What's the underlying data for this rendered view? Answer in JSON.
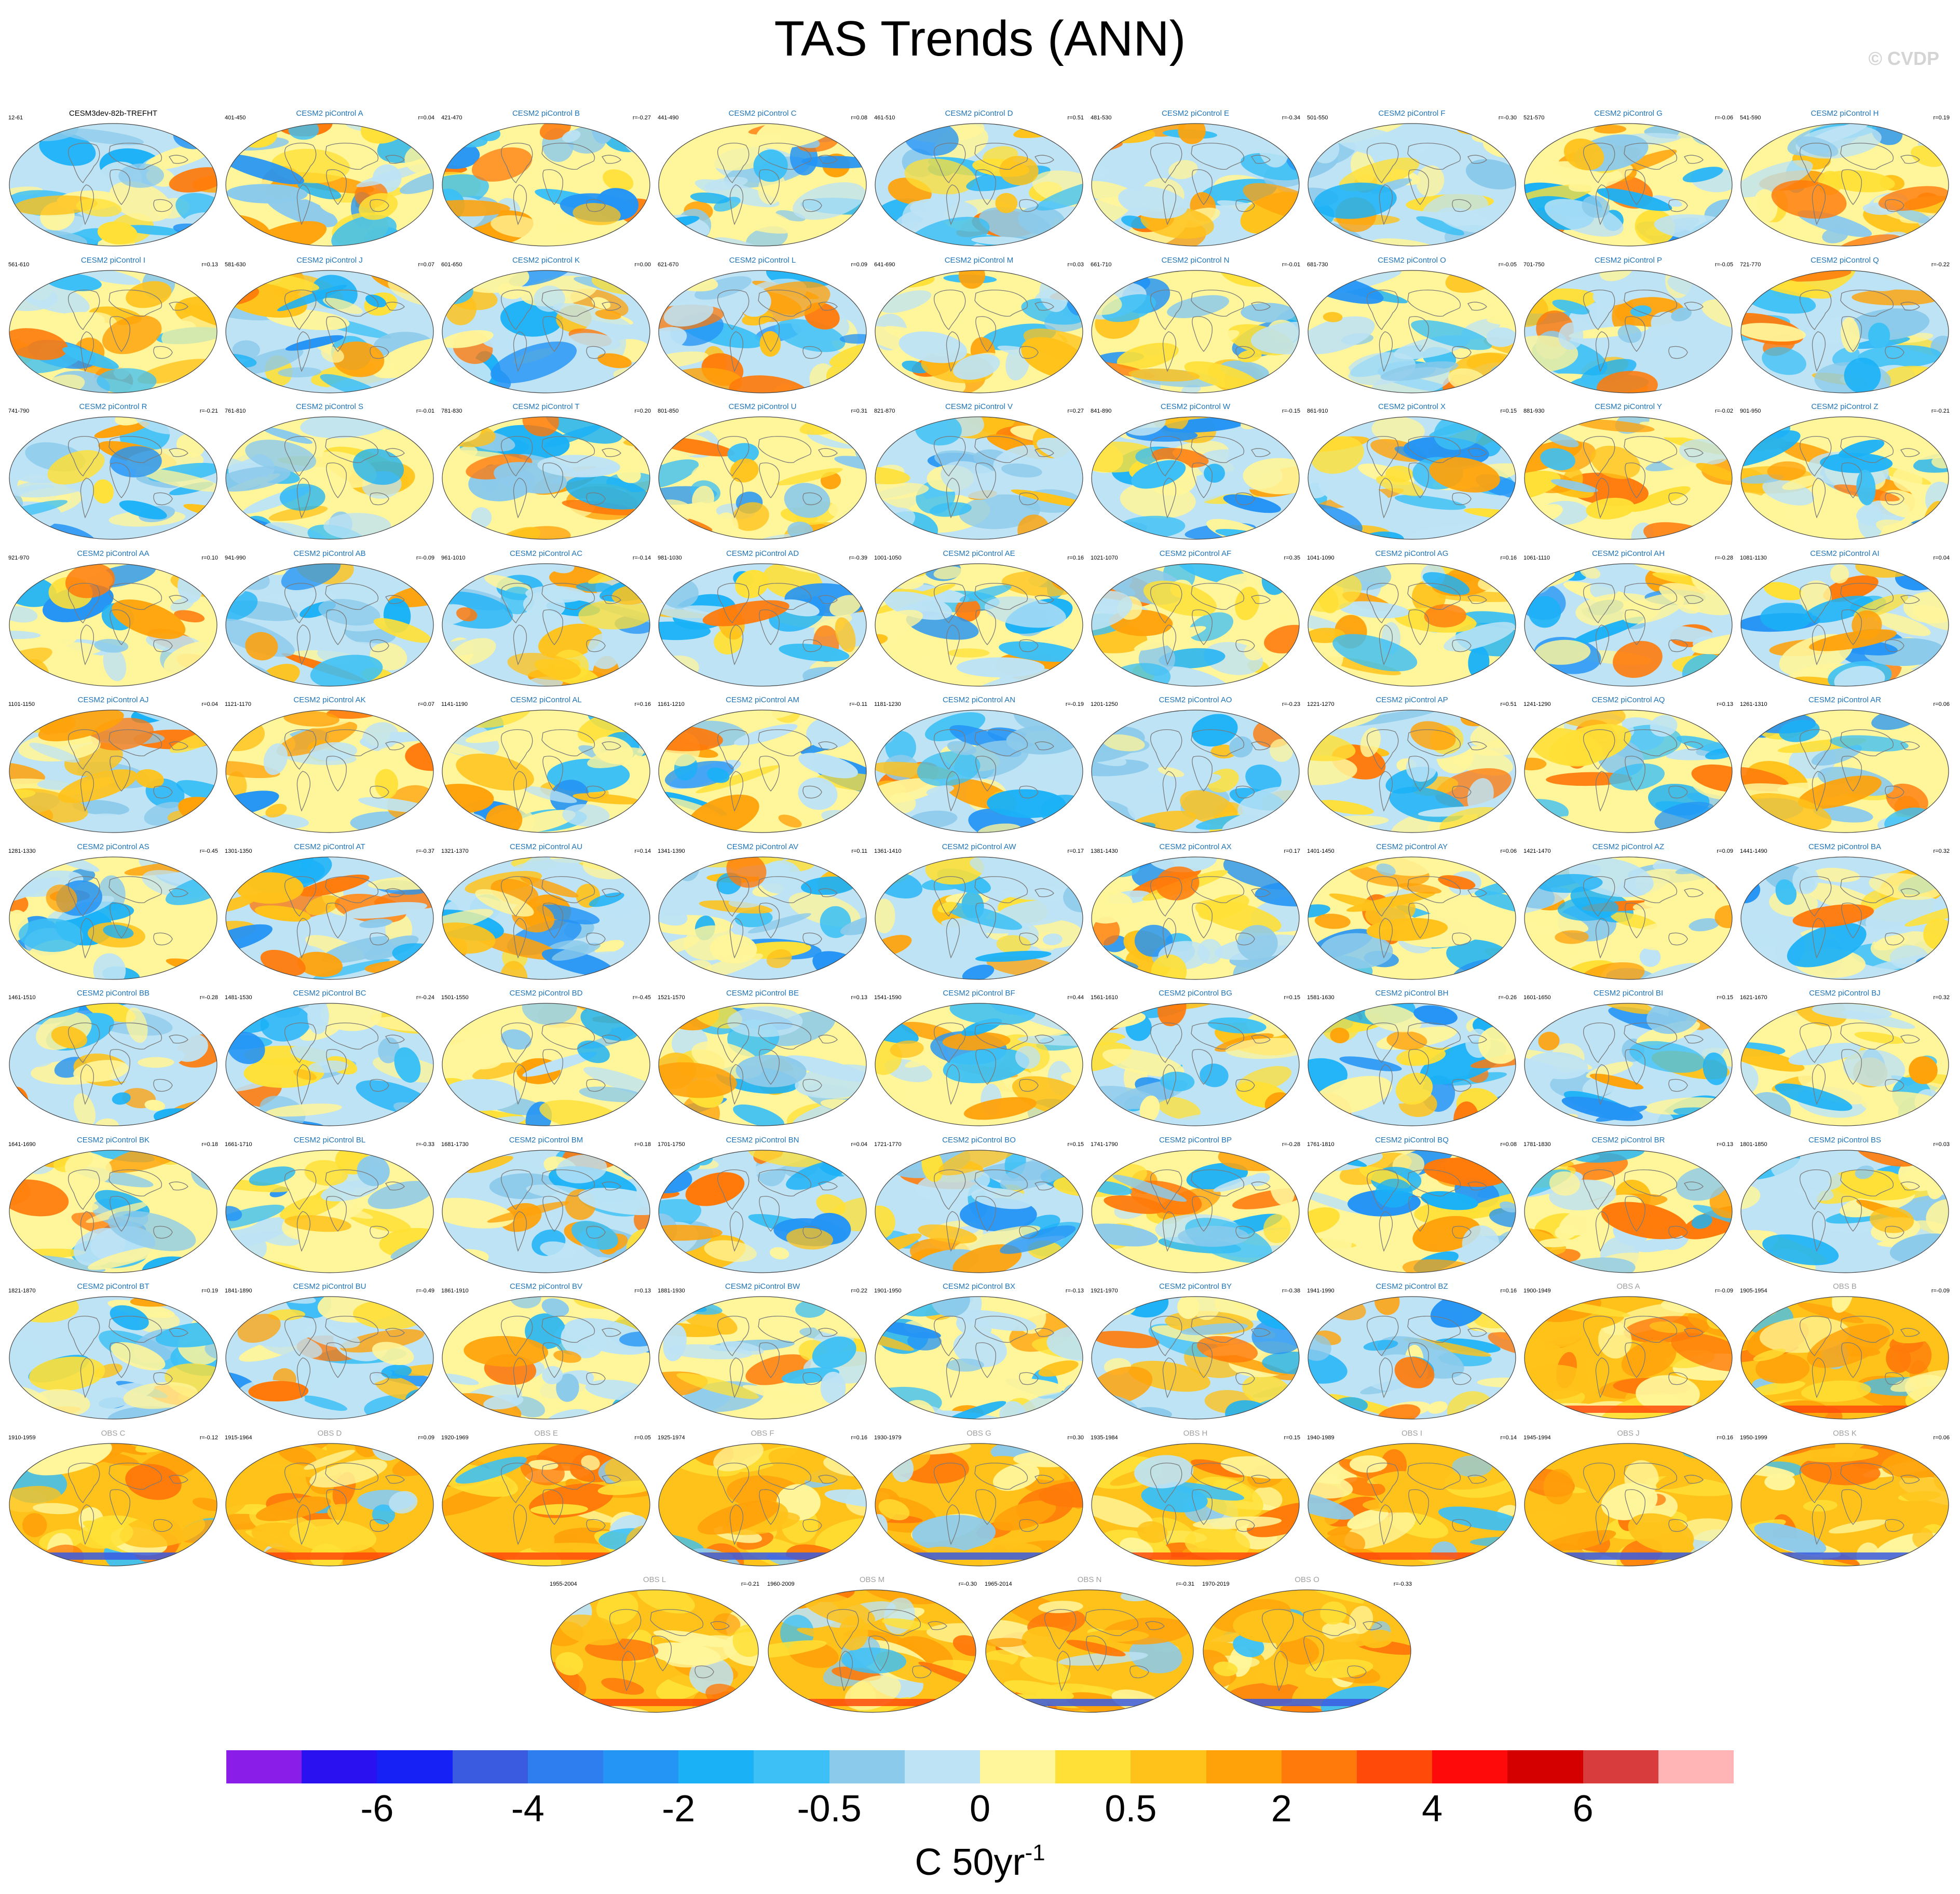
{
  "title": "TAS Trends (ANN)",
  "watermark": "© CVDP",
  "colorbar": {
    "colors": [
      "#8a1ee8",
      "#2a12f0",
      "#1622f5",
      "#3a5ae0",
      "#2e7ef0",
      "#2494f5",
      "#1ab1f7",
      "#3cc0f5",
      "#8ccaeb",
      "#bde3f5",
      "#fff59a",
      "#ffe036",
      "#ffc21a",
      "#ffa20a",
      "#ff7a0a",
      "#ff4a0a",
      "#ff0a0a",
      "#d40000",
      "#d93c3c",
      "#ffb5b5"
    ],
    "tick_labels": [
      "-6",
      "-4",
      "-2",
      "-0.5",
      "0",
      "0.5",
      "2",
      "4",
      "6"
    ],
    "units": "C 50yr",
    "units_exp": "-1"
  },
  "panels": [
    {
      "title": "CESM3dev-82b-TREFHT",
      "years": "12-61",
      "r": "",
      "kind": "model",
      "seed": 1
    },
    {
      "title": "CESM2 piControl A",
      "years": "401-450",
      "r": "r=0.04",
      "kind": "ctrl",
      "seed": 2
    },
    {
      "title": "CESM2 piControl B",
      "years": "421-470",
      "r": "r=-0.27",
      "kind": "ctrl",
      "seed": 3
    },
    {
      "title": "CESM2 piControl C",
      "years": "441-490",
      "r": "r=0.08",
      "kind": "ctrl",
      "seed": 4
    },
    {
      "title": "CESM2 piControl D",
      "years": "461-510",
      "r": "r=0.51",
      "kind": "ctrl",
      "seed": 5
    },
    {
      "title": "CESM2 piControl E",
      "years": "481-530",
      "r": "r=-0.34",
      "kind": "ctrl",
      "seed": 6
    },
    {
      "title": "CESM2 piControl F",
      "years": "501-550",
      "r": "r=-0.30",
      "kind": "ctrl",
      "seed": 7
    },
    {
      "title": "CESM2 piControl G",
      "years": "521-570",
      "r": "r=-0.06",
      "kind": "ctrl",
      "seed": 8
    },
    {
      "title": "CESM2 piControl H",
      "years": "541-590",
      "r": "r=0.19",
      "kind": "ctrl",
      "seed": 9
    },
    {
      "title": "CESM2 piControl I",
      "years": "561-610",
      "r": "r=0.13",
      "kind": "ctrl",
      "seed": 10
    },
    {
      "title": "CESM2 piControl J",
      "years": "581-630",
      "r": "r=0.07",
      "kind": "ctrl",
      "seed": 11
    },
    {
      "title": "CESM2 piControl K",
      "years": "601-650",
      "r": "r=0.00",
      "kind": "ctrl",
      "seed": 12
    },
    {
      "title": "CESM2 piControl L",
      "years": "621-670",
      "r": "r=0.09",
      "kind": "ctrl",
      "seed": 13
    },
    {
      "title": "CESM2 piControl M",
      "years": "641-690",
      "r": "r=0.03",
      "kind": "ctrl",
      "seed": 14
    },
    {
      "title": "CESM2 piControl N",
      "years": "661-710",
      "r": "r=-0.01",
      "kind": "ctrl",
      "seed": 15
    },
    {
      "title": "CESM2 piControl O",
      "years": "681-730",
      "r": "r=-0.05",
      "kind": "ctrl",
      "seed": 16
    },
    {
      "title": "CESM2 piControl P",
      "years": "701-750",
      "r": "r=-0.05",
      "kind": "ctrl",
      "seed": 17
    },
    {
      "title": "CESM2 piControl Q",
      "years": "721-770",
      "r": "r=-0.22",
      "kind": "ctrl",
      "seed": 18
    },
    {
      "title": "CESM2 piControl R",
      "years": "741-790",
      "r": "r=-0.21",
      "kind": "ctrl",
      "seed": 19
    },
    {
      "title": "CESM2 piControl S",
      "years": "761-810",
      "r": "r=-0.01",
      "kind": "ctrl",
      "seed": 20
    },
    {
      "title": "CESM2 piControl T",
      "years": "781-830",
      "r": "r=0.20",
      "kind": "ctrl",
      "seed": 21
    },
    {
      "title": "CESM2 piControl U",
      "years": "801-850",
      "r": "r=0.31",
      "kind": "ctrl",
      "seed": 22
    },
    {
      "title": "CESM2 piControl V",
      "years": "821-870",
      "r": "r=0.27",
      "kind": "ctrl",
      "seed": 23
    },
    {
      "title": "CESM2 piControl W",
      "years": "841-890",
      "r": "r=-0.15",
      "kind": "ctrl",
      "seed": 24
    },
    {
      "title": "CESM2 piControl X",
      "years": "861-910",
      "r": "r=0.15",
      "kind": "ctrl",
      "seed": 25
    },
    {
      "title": "CESM2 piControl Y",
      "years": "881-930",
      "r": "r=-0.02",
      "kind": "ctrl",
      "seed": 26
    },
    {
      "title": "CESM2 piControl Z",
      "years": "901-950",
      "r": "r=-0.21",
      "kind": "ctrl",
      "seed": 27
    },
    {
      "title": "CESM2 piControl AA",
      "years": "921-970",
      "r": "r=0.10",
      "kind": "ctrl",
      "seed": 28
    },
    {
      "title": "CESM2 piControl AB",
      "years": "941-990",
      "r": "r=-0.09",
      "kind": "ctrl",
      "seed": 29
    },
    {
      "title": "CESM2 piControl AC",
      "years": "961-1010",
      "r": "r=-0.14",
      "kind": "ctrl",
      "seed": 30
    },
    {
      "title": "CESM2 piControl AD",
      "years": "981-1030",
      "r": "r=-0.39",
      "kind": "ctrl",
      "seed": 31
    },
    {
      "title": "CESM2 piControl AE",
      "years": "1001-1050",
      "r": "r=0.16",
      "kind": "ctrl",
      "seed": 32
    },
    {
      "title": "CESM2 piControl AF",
      "years": "1021-1070",
      "r": "r=0.35",
      "kind": "ctrl",
      "seed": 33
    },
    {
      "title": "CESM2 piControl AG",
      "years": "1041-1090",
      "r": "r=0.16",
      "kind": "ctrl",
      "seed": 34
    },
    {
      "title": "CESM2 piControl AH",
      "years": "1061-1110",
      "r": "r=-0.28",
      "kind": "ctrl",
      "seed": 35
    },
    {
      "title": "CESM2 piControl AI",
      "years": "1081-1130",
      "r": "r=0.04",
      "kind": "ctrl",
      "seed": 36
    },
    {
      "title": "CESM2 piControl AJ",
      "years": "1101-1150",
      "r": "r=0.04",
      "kind": "ctrl",
      "seed": 37
    },
    {
      "title": "CESM2 piControl AK",
      "years": "1121-1170",
      "r": "r=0.07",
      "kind": "ctrl",
      "seed": 38
    },
    {
      "title": "CESM2 piControl AL",
      "years": "1141-1190",
      "r": "r=0.16",
      "kind": "ctrl",
      "seed": 39
    },
    {
      "title": "CESM2 piControl AM",
      "years": "1161-1210",
      "r": "r=-0.11",
      "kind": "ctrl",
      "seed": 40
    },
    {
      "title": "CESM2 piControl AN",
      "years": "1181-1230",
      "r": "r=-0.19",
      "kind": "ctrl",
      "seed": 41
    },
    {
      "title": "CESM2 piControl AO",
      "years": "1201-1250",
      "r": "r=-0.23",
      "kind": "ctrl",
      "seed": 42
    },
    {
      "title": "CESM2 piControl AP",
      "years": "1221-1270",
      "r": "r=0.51",
      "kind": "ctrl",
      "seed": 43
    },
    {
      "title": "CESM2 piControl AQ",
      "years": "1241-1290",
      "r": "r=0.13",
      "kind": "ctrl",
      "seed": 44
    },
    {
      "title": "CESM2 piControl AR",
      "years": "1261-1310",
      "r": "r=0.06",
      "kind": "ctrl",
      "seed": 45
    },
    {
      "title": "CESM2 piControl AS",
      "years": "1281-1330",
      "r": "r=-0.45",
      "kind": "ctrl",
      "seed": 46
    },
    {
      "title": "CESM2 piControl AT",
      "years": "1301-1350",
      "r": "r=-0.37",
      "kind": "ctrl",
      "seed": 47
    },
    {
      "title": "CESM2 piControl AU",
      "years": "1321-1370",
      "r": "r=0.14",
      "kind": "ctrl",
      "seed": 48
    },
    {
      "title": "CESM2 piControl AV",
      "years": "1341-1390",
      "r": "r=0.11",
      "kind": "ctrl",
      "seed": 49
    },
    {
      "title": "CESM2 piControl AW",
      "years": "1361-1410",
      "r": "r=0.17",
      "kind": "ctrl",
      "seed": 50
    },
    {
      "title": "CESM2 piControl AX",
      "years": "1381-1430",
      "r": "r=0.17",
      "kind": "ctrl",
      "seed": 51
    },
    {
      "title": "CESM2 piControl AY",
      "years": "1401-1450",
      "r": "r=0.06",
      "kind": "ctrl",
      "seed": 52
    },
    {
      "title": "CESM2 piControl AZ",
      "years": "1421-1470",
      "r": "r=0.09",
      "kind": "ctrl",
      "seed": 53
    },
    {
      "title": "CESM2 piControl BA",
      "years": "1441-1490",
      "r": "r=0.32",
      "kind": "ctrl",
      "seed": 54
    },
    {
      "title": "CESM2 piControl BB",
      "years": "1461-1510",
      "r": "r=-0.28",
      "kind": "ctrl",
      "seed": 55
    },
    {
      "title": "CESM2 piControl BC",
      "years": "1481-1530",
      "r": "r=-0.24",
      "kind": "ctrl",
      "seed": 56
    },
    {
      "title": "CESM2 piControl BD",
      "years": "1501-1550",
      "r": "r=-0.45",
      "kind": "ctrl",
      "seed": 57
    },
    {
      "title": "CESM2 piControl BE",
      "years": "1521-1570",
      "r": "r=0.13",
      "kind": "ctrl",
      "seed": 58
    },
    {
      "title": "CESM2 piControl BF",
      "years": "1541-1590",
      "r": "r=0.44",
      "kind": "ctrl",
      "seed": 59
    },
    {
      "title": "CESM2 piControl BG",
      "years": "1561-1610",
      "r": "r=0.15",
      "kind": "ctrl",
      "seed": 60
    },
    {
      "title": "CESM2 piControl BH",
      "years": "1581-1630",
      "r": "r=-0.26",
      "kind": "ctrl",
      "seed": 61
    },
    {
      "title": "CESM2 piControl BI",
      "years": "1601-1650",
      "r": "r=0.15",
      "kind": "ctrl",
      "seed": 62
    },
    {
      "title": "CESM2 piControl BJ",
      "years": "1621-1670",
      "r": "r=0.32",
      "kind": "ctrl",
      "seed": 63
    },
    {
      "title": "CESM2 piControl BK",
      "years": "1641-1690",
      "r": "r=0.18",
      "kind": "ctrl",
      "seed": 64
    },
    {
      "title": "CESM2 piControl BL",
      "years": "1661-1710",
      "r": "r=-0.33",
      "kind": "ctrl",
      "seed": 65
    },
    {
      "title": "CESM2 piControl BM",
      "years": "1681-1730",
      "r": "r=0.18",
      "kind": "ctrl",
      "seed": 66
    },
    {
      "title": "CESM2 piControl BN",
      "years": "1701-1750",
      "r": "r=0.04",
      "kind": "ctrl",
      "seed": 67
    },
    {
      "title": "CESM2 piControl BO",
      "years": "1721-1770",
      "r": "r=0.15",
      "kind": "ctrl",
      "seed": 68
    },
    {
      "title": "CESM2 piControl BP",
      "years": "1741-1790",
      "r": "r=-0.28",
      "kind": "ctrl",
      "seed": 69
    },
    {
      "title": "CESM2 piControl BQ",
      "years": "1761-1810",
      "r": "r=0.08",
      "kind": "ctrl",
      "seed": 70
    },
    {
      "title": "CESM2 piControl BR",
      "years": "1781-1830",
      "r": "r=0.13",
      "kind": "ctrl",
      "seed": 71
    },
    {
      "title": "CESM2 piControl BS",
      "years": "1801-1850",
      "r": "r=0.03",
      "kind": "ctrl",
      "seed": 72
    },
    {
      "title": "CESM2 piControl BT",
      "years": "1821-1870",
      "r": "r=0.19",
      "kind": "ctrl",
      "seed": 73
    },
    {
      "title": "CESM2 piControl BU",
      "years": "1841-1890",
      "r": "r=-0.49",
      "kind": "ctrl",
      "seed": 74
    },
    {
      "title": "CESM2 piControl BV",
      "years": "1861-1910",
      "r": "r=0.13",
      "kind": "ctrl",
      "seed": 75
    },
    {
      "title": "CESM2 piControl BW",
      "years": "1881-1930",
      "r": "r=0.22",
      "kind": "ctrl",
      "seed": 76
    },
    {
      "title": "CESM2 piControl BX",
      "years": "1901-1950",
      "r": "r=-0.13",
      "kind": "ctrl",
      "seed": 77
    },
    {
      "title": "CESM2 piControl BY",
      "years": "1921-1970",
      "r": "r=-0.38",
      "kind": "ctrl",
      "seed": 78
    },
    {
      "title": "CESM2 piControl BZ",
      "years": "1941-1990",
      "r": "r=0.16",
      "kind": "ctrl",
      "seed": 79
    },
    {
      "title": "OBS A",
      "years": "1900-1949",
      "r": "r=-0.09",
      "kind": "obs",
      "seed": 80
    },
    {
      "title": "OBS B",
      "years": "1905-1954",
      "r": "r=-0.09",
      "kind": "obs",
      "seed": 81
    },
    {
      "title": "OBS C",
      "years": "1910-1959",
      "r": "r=-0.12",
      "kind": "obs",
      "seed": 82
    },
    {
      "title": "OBS D",
      "years": "1915-1964",
      "r": "r=0.09",
      "kind": "obs",
      "seed": 83
    },
    {
      "title": "OBS E",
      "years": "1920-1969",
      "r": "r=0.05",
      "kind": "obs",
      "seed": 84
    },
    {
      "title": "OBS F",
      "years": "1925-1974",
      "r": "r=0.16",
      "kind": "obs",
      "seed": 85
    },
    {
      "title": "OBS G",
      "years": "1930-1979",
      "r": "r=0.30",
      "kind": "obs",
      "seed": 86
    },
    {
      "title": "OBS H",
      "years": "1935-1984",
      "r": "r=0.15",
      "kind": "obs",
      "seed": 87
    },
    {
      "title": "OBS I",
      "years": "1940-1989",
      "r": "r=0.14",
      "kind": "obs",
      "seed": 88
    },
    {
      "title": "OBS J",
      "years": "1945-1994",
      "r": "r=0.16",
      "kind": "obs",
      "seed": 89
    },
    {
      "title": "OBS K",
      "years": "1950-1999",
      "r": "r=0.06",
      "kind": "obs",
      "seed": 90
    },
    {
      "title": "OBS L",
      "years": "1955-2004",
      "r": "r=-0.21",
      "kind": "obs",
      "seed": 91
    },
    {
      "title": "OBS M",
      "years": "1960-2009",
      "r": "r=-0.30",
      "kind": "obs",
      "seed": 92
    },
    {
      "title": "OBS N",
      "years": "1965-2014",
      "r": "r=-0.31",
      "kind": "obs",
      "seed": 93
    },
    {
      "title": "OBS O",
      "years": "1970-2019",
      "r": "r=-0.33",
      "kind": "obs",
      "seed": 94
    }
  ]
}
